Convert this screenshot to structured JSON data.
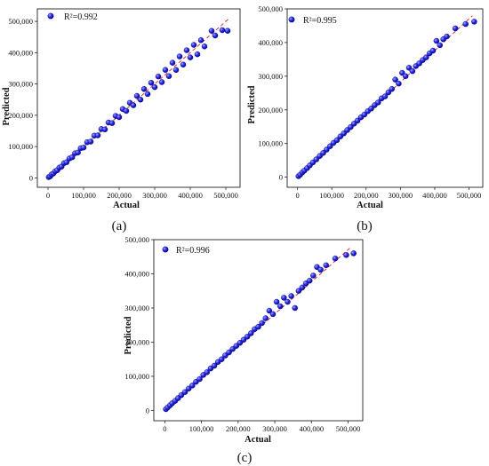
{
  "panels": [
    {
      "id": "a",
      "label": "(a)",
      "legend": {
        "text": "R²=0.992"
      },
      "chart_data": {
        "type": "scatter",
        "xlabel": "Actual",
        "ylabel": "Predicted",
        "xlim": [
          -30000,
          540000
        ],
        "ylim": [
          -30000,
          540000
        ],
        "xticks": [
          0,
          100000,
          200000,
          300000,
          400000,
          500000
        ],
        "yticks": [
          0,
          100000,
          200000,
          300000,
          400000,
          500000
        ],
        "xtick_labels": [
          "0",
          "100,000",
          "200,000",
          "300,000",
          "400,000",
          "500,000"
        ],
        "ytick_labels": [
          "0",
          "100,000",
          "200,000",
          "300,000",
          "400,000",
          "500,000"
        ],
        "reference_line": {
          "from": [
            0,
            0
          ],
          "to": [
            510000,
            510000
          ],
          "style": "dashed",
          "color": "#e03030"
        },
        "marker_color": "#1a1adf",
        "series": [
          {
            "name": "R²=0.992",
            "points": [
              [
                2000,
                2500
              ],
              [
                6000,
                5000
              ],
              [
                10000,
                11000
              ],
              [
                15000,
                14000
              ],
              [
                20000,
                21000
              ],
              [
                26000,
                24500
              ],
              [
                32000,
                33000
              ],
              [
                38000,
                36000
              ],
              [
                45000,
                47000
              ],
              [
                52000,
                50000
              ],
              [
                60000,
                62000
              ],
              [
                68000,
                66000
              ],
              [
                76000,
                79000
              ],
              [
                84000,
                81000
              ],
              [
                92000,
                95000
              ],
              [
                100000,
                97000
              ],
              [
                110000,
                114000
              ],
              [
                120000,
                116000
              ],
              [
                130000,
                135000
              ],
              [
                140000,
                136000
              ],
              [
                150000,
                156000
              ],
              [
                160000,
                155000
              ],
              [
                170000,
                177000
              ],
              [
                180000,
                175000
              ],
              [
                190000,
                198000
              ],
              [
                200000,
                194000
              ],
              [
                210000,
                220000
              ],
              [
                220000,
                214000
              ],
              [
                230000,
                240000
              ],
              [
                240000,
                232000
              ],
              [
                250000,
                262000
              ],
              [
                260000,
                250000
              ],
              [
                270000,
                284000
              ],
              [
                280000,
                268000
              ],
              [
                290000,
                304000
              ],
              [
                300000,
                290000
              ],
              [
                310000,
                324000
              ],
              [
                320000,
                306000
              ],
              [
                330000,
                345000
              ],
              [
                340000,
                325000
              ],
              [
                350000,
                368000
              ],
              [
                360000,
                345000
              ],
              [
                370000,
                388000
              ],
              [
                380000,
                362000
              ],
              [
                390000,
                408000
              ],
              [
                400000,
                385000
              ],
              [
                410000,
                425000
              ],
              [
                420000,
                395000
              ],
              [
                430000,
                440000
              ],
              [
                440000,
                420000
              ],
              [
                460000,
                470000
              ],
              [
                470000,
                455000
              ],
              [
                490000,
                472000
              ],
              [
                505000,
                470000
              ]
            ]
          }
        ]
      }
    },
    {
      "id": "b",
      "label": "(b)",
      "legend": {
        "text": "R²=0.995"
      },
      "chart_data": {
        "type": "scatter",
        "xlabel": "Actual",
        "ylabel": "Predicted",
        "xlim": [
          -30000,
          540000
        ],
        "ylim": [
          -30000,
          500000
        ],
        "xticks": [
          0,
          100000,
          200000,
          300000,
          400000,
          500000
        ],
        "yticks": [
          0,
          100000,
          200000,
          300000,
          400000,
          500000
        ],
        "xtick_labels": [
          "0",
          "100,000",
          "200,000",
          "300,000",
          "400,000",
          "500,000"
        ],
        "ytick_labels": [
          "0",
          "100,000",
          "200,000",
          "300,000",
          "400,000",
          "500,000"
        ],
        "reference_line": {
          "from": [
            0,
            0
          ],
          "to": [
            510000,
            480000
          ],
          "style": "dashed",
          "color": "#e03030"
        },
        "marker_color": "#1a1adf",
        "series": [
          {
            "name": "R²=0.995",
            "points": [
              [
                3000,
                3000
              ],
              [
                8000,
                7500
              ],
              [
                14000,
                14000
              ],
              [
                20000,
                19500
              ],
              [
                28000,
                27000
              ],
              [
                36000,
                35000
              ],
              [
                45000,
                44000
              ],
              [
                55000,
                53000
              ],
              [
                65000,
                63000
              ],
              [
                75000,
                72000
              ],
              [
                85000,
                82000
              ],
              [
                95000,
                92000
              ],
              [
                105000,
                102000
              ],
              [
                115000,
                110000
              ],
              [
                125000,
                121000
              ],
              [
                135000,
                130000
              ],
              [
                145000,
                140000
              ],
              [
                155000,
                149000
              ],
              [
                165000,
                159000
              ],
              [
                175000,
                168000
              ],
              [
                185000,
                178000
              ],
              [
                195000,
                186000
              ],
              [
                205000,
                196000
              ],
              [
                215000,
                204000
              ],
              [
                225000,
                214000
              ],
              [
                235000,
                222000
              ],
              [
                245000,
                234000
              ],
              [
                255000,
                240000
              ],
              [
                265000,
                252000
              ],
              [
                275000,
                262000
              ],
              [
                285000,
                290000
              ],
              [
                295000,
                278000
              ],
              [
                305000,
                310000
              ],
              [
                315000,
                300000
              ],
              [
                325000,
                325000
              ],
              [
                335000,
                315000
              ],
              [
                345000,
                330000
              ],
              [
                355000,
                338000
              ],
              [
                365000,
                348000
              ],
              [
                375000,
                356000
              ],
              [
                385000,
                368000
              ],
              [
                395000,
                376000
              ],
              [
                405000,
                405000
              ],
              [
                415000,
                392000
              ],
              [
                425000,
                410000
              ],
              [
                435000,
                418000
              ],
              [
                460000,
                442000
              ],
              [
                490000,
                455000
              ],
              [
                515000,
                462000
              ]
            ]
          }
        ]
      }
    },
    {
      "id": "c",
      "label": "(c)",
      "legend": {
        "text": "R²=0.996"
      },
      "chart_data": {
        "type": "scatter",
        "xlabel": "Actual",
        "ylabel": "Predicted",
        "xlim": [
          -30000,
          540000
        ],
        "ylim": [
          -30000,
          500000
        ],
        "xticks": [
          0,
          100000,
          200000,
          300000,
          400000,
          500000
        ],
        "yticks": [
          0,
          100000,
          200000,
          300000,
          400000,
          500000
        ],
        "xtick_labels": [
          "0",
          "100,000",
          "200,000",
          "300,000",
          "400,000",
          "500,000"
        ],
        "ytick_labels": [
          "0",
          "100,000",
          "200,000",
          "300,000",
          "400,000",
          "500,000"
        ],
        "reference_line": {
          "from": [
            0,
            0
          ],
          "to": [
            510000,
            480000
          ],
          "style": "dashed",
          "color": "#e03030"
        },
        "marker_color": "#1a1adf",
        "series": [
          {
            "name": "R²=0.996",
            "points": [
              [
                3000,
                4000
              ],
              [
                8000,
                9000
              ],
              [
                14000,
                15000
              ],
              [
                20000,
                21000
              ],
              [
                28000,
                28000
              ],
              [
                36000,
                36000
              ],
              [
                45000,
                45000
              ],
              [
                55000,
                54000
              ],
              [
                65000,
                64000
              ],
              [
                75000,
                73000
              ],
              [
                85000,
                84000
              ],
              [
                95000,
                92000
              ],
              [
                105000,
                104000
              ],
              [
                115000,
                112000
              ],
              [
                125000,
                123000
              ],
              [
                135000,
                131000
              ],
              [
                145000,
                142000
              ],
              [
                155000,
                150000
              ],
              [
                165000,
                161000
              ],
              [
                175000,
                170000
              ],
              [
                185000,
                180000
              ],
              [
                195000,
                189000
              ],
              [
                205000,
                198000
              ],
              [
                215000,
                207000
              ],
              [
                225000,
                216000
              ],
              [
                235000,
                226000
              ],
              [
                245000,
                238000
              ],
              [
                255000,
                245000
              ],
              [
                265000,
                256000
              ],
              [
                275000,
                270000
              ],
              [
                285000,
                292000
              ],
              [
                295000,
                282000
              ],
              [
                305000,
                318000
              ],
              [
                315000,
                305000
              ],
              [
                325000,
                330000
              ],
              [
                335000,
                318000
              ],
              [
                345000,
                335000
              ],
              [
                355000,
                300000
              ],
              [
                365000,
                350000
              ],
              [
                375000,
                360000
              ],
              [
                385000,
                372000
              ],
              [
                395000,
                380000
              ],
              [
                405000,
                395000
              ],
              [
                415000,
                420000
              ],
              [
                425000,
                412000
              ],
              [
                440000,
                425000
              ],
              [
                465000,
                445000
              ],
              [
                495000,
                455000
              ],
              [
                515000,
                460000
              ]
            ]
          }
        ]
      }
    }
  ]
}
